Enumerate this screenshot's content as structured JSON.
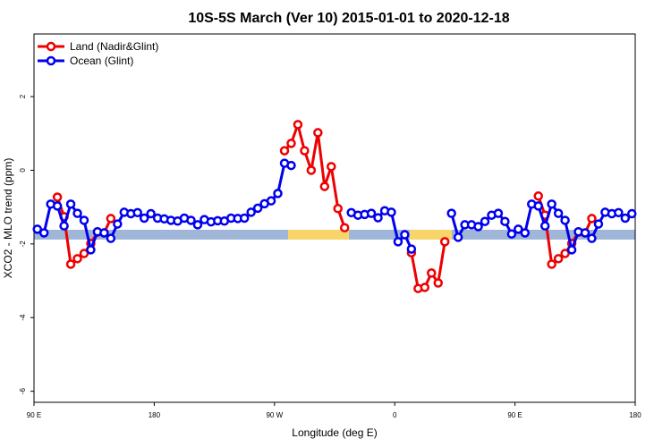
{
  "chart_data": {
    "type": "line",
    "title": "10S-5S March (Ver 10)   2015-01-01 to 2020-12-18",
    "x_label": "Longitude (deg E)",
    "y_label": "XCO2 - MLO trend (ppm)",
    "x": [
      92.5,
      97.5,
      102.5,
      107.5,
      112.5,
      117.5,
      122.5,
      127.5,
      132.5,
      137.5,
      142.5,
      147.5,
      152.5,
      157.5,
      162.5,
      167.5,
      172.5,
      177.5,
      182.5,
      187.5,
      192.5,
      197.5,
      202.5,
      207.5,
      212.5,
      217.5,
      222.5,
      227.5,
      232.5,
      237.5,
      242.5,
      247.5,
      252.5,
      257.5,
      262.5,
      267.5,
      272.5,
      277.5,
      282.5,
      287.5,
      292.5,
      297.5,
      302.5,
      307.5,
      312.5,
      317.5,
      322.5,
      327.5,
      332.5,
      337.5,
      342.5,
      347.5,
      352.5,
      357.5,
      362.5,
      367.5,
      372.5,
      377.5,
      382.5,
      387.5,
      392.5,
      397.5,
      402.5,
      407.5,
      412.5,
      417.5,
      422.5,
      427.5,
      432.5,
      437.5,
      442.5,
      447.5,
      452.5,
      457.5,
      462.5,
      467.5,
      472.5,
      477.5,
      482.5,
      487.5,
      492.5,
      497.5,
      502.5,
      507.5,
      512.5,
      517.5,
      522.5,
      527.5,
      532.5,
      537.5
    ],
    "series": [
      {
        "name": "Land (Nadir&Glint)",
        "color": "#ee0000",
        "values": [
          null,
          null,
          null,
          -0.73,
          -1.26,
          -2.55,
          -2.4,
          -2.26,
          -1.99,
          -1.68,
          -1.7,
          -1.31,
          null,
          null,
          null,
          null,
          null,
          null,
          null,
          null,
          null,
          null,
          null,
          null,
          null,
          null,
          null,
          null,
          null,
          null,
          null,
          null,
          null,
          null,
          null,
          null,
          null,
          0.53,
          0.73,
          1.24,
          0.53,
          0.0,
          1.02,
          -0.44,
          0.1,
          -1.04,
          -1.56,
          null,
          null,
          null,
          null,
          null,
          null,
          null,
          null,
          null,
          -2.24,
          -3.21,
          -3.18,
          -2.79,
          -3.06,
          -1.94,
          null,
          null,
          null,
          null,
          null,
          null,
          null,
          null,
          null,
          null,
          null,
          null,
          null,
          -0.7,
          -1.22,
          -2.55,
          -2.4,
          -2.26,
          -1.99,
          -1.68,
          -1.7,
          -1.31,
          null,
          null,
          null,
          null,
          null,
          null
        ]
      },
      {
        "name": "Ocean (Glint)",
        "color": "#0000ee",
        "values": [
          -1.6,
          -1.7,
          -0.92,
          -0.97,
          -1.51,
          -0.92,
          -1.17,
          -1.36,
          -2.16,
          -1.67,
          -1.7,
          -1.85,
          -1.46,
          -1.14,
          -1.18,
          -1.15,
          -1.3,
          -1.18,
          -1.3,
          -1.32,
          -1.36,
          -1.38,
          -1.3,
          -1.36,
          -1.48,
          -1.34,
          -1.4,
          -1.37,
          -1.38,
          -1.3,
          -1.31,
          -1.3,
          -1.14,
          -1.03,
          -0.91,
          -0.83,
          -0.63,
          0.19,
          0.13,
          null,
          null,
          null,
          null,
          null,
          null,
          null,
          null,
          -1.15,
          -1.22,
          -1.2,
          -1.17,
          -1.29,
          -1.1,
          -1.14,
          -1.94,
          -1.75,
          -2.14,
          null,
          null,
          null,
          null,
          null,
          -1.17,
          -1.82,
          -1.48,
          -1.48,
          -1.53,
          -1.39,
          -1.22,
          -1.17,
          -1.39,
          -1.73,
          -1.6,
          -1.7,
          -0.92,
          -0.97,
          -1.51,
          -0.92,
          -1.17,
          -1.36,
          -2.16,
          -1.67,
          -1.7,
          -1.85,
          -1.46,
          -1.14,
          -1.18,
          -1.15,
          -1.3,
          -1.18
        ]
      }
    ],
    "xlim": [
      90,
      540
    ],
    "xticks": [
      {
        "value": 90,
        "label": "90 E"
      },
      180,
      {
        "value": 270,
        "label": "90 W"
      },
      {
        "value": 360,
        "label": "0"
      },
      {
        "value": 450,
        "label": "90 E"
      },
      {
        "value": 540,
        "label": "180"
      }
    ],
    "ylim": [
      -6.3,
      3.7
    ],
    "yticks": [
      -6,
      -4,
      -2,
      0,
      2
    ],
    "legend": "top-left"
  }
}
